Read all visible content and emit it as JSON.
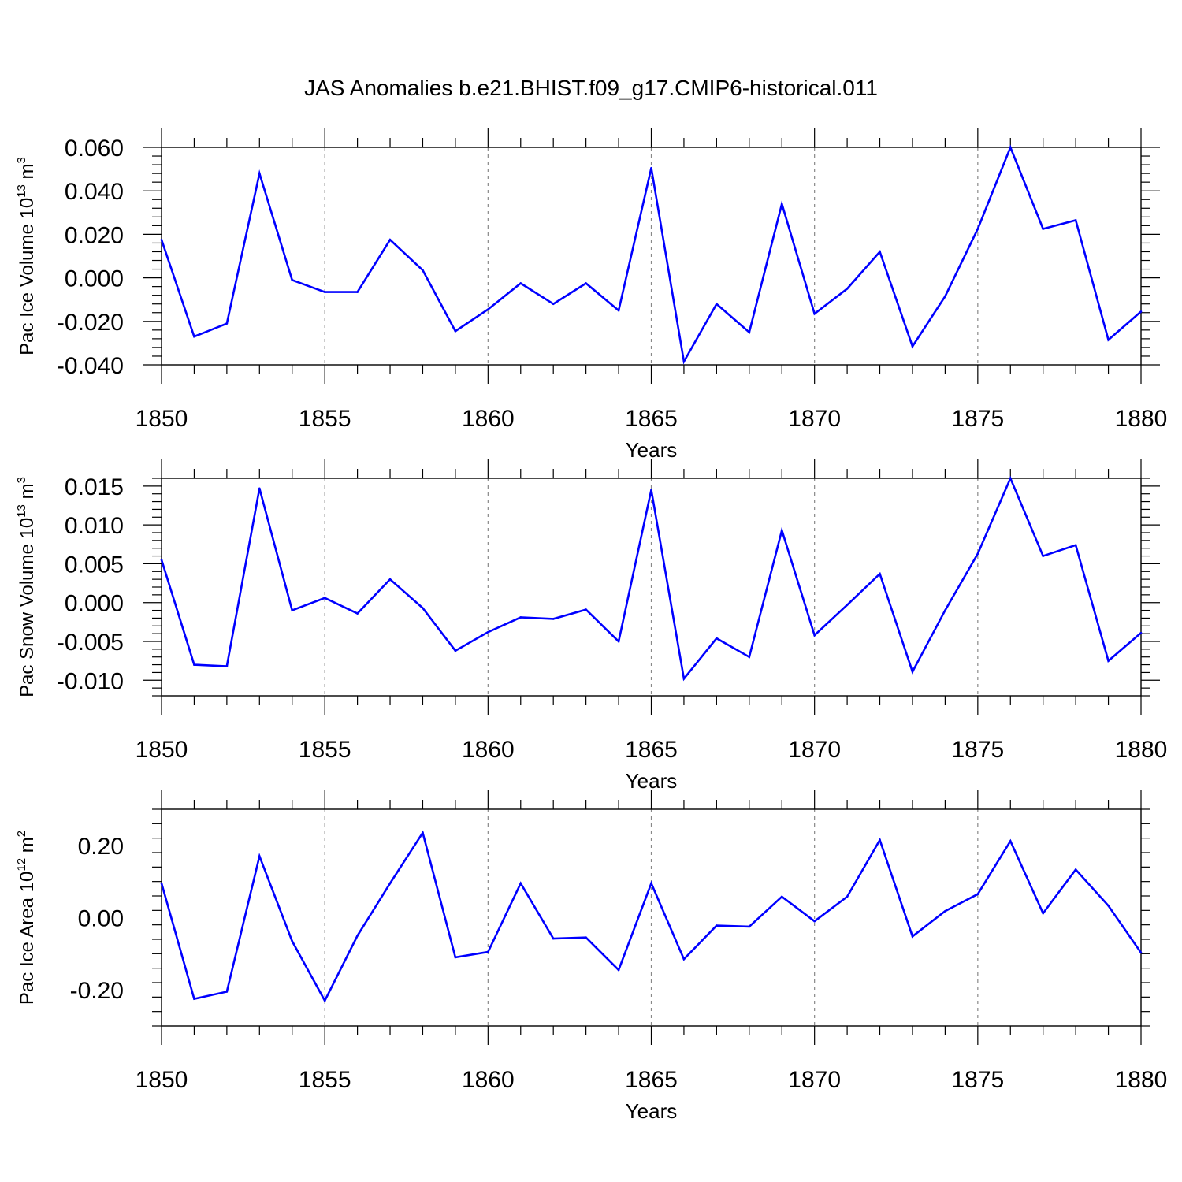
{
  "figure": {
    "title": "JAS Anomalies b.e21.BHIST.f09_g17.CMIP6-historical.011",
    "line_color": "#0000ff",
    "grid_color": "#888888"
  },
  "chart_data": [
    {
      "type": "line",
      "title": "",
      "xlabel": "Years",
      "ylabel": "Pac Ice Volume 10",
      "ylabel_exp": "13",
      "ylabel_unit": " m",
      "ylabel_unit_exp": "3",
      "xlim": [
        1850,
        1880
      ],
      "ylim": [
        -0.04,
        0.06
      ],
      "xticks": [
        1850,
        1855,
        1860,
        1865,
        1870,
        1875,
        1880
      ],
      "xticklabels": [
        "1850",
        "1855",
        "1860",
        "1865",
        "1870",
        "1875",
        "1880"
      ],
      "yticks": [
        -0.04,
        -0.02,
        0.0,
        0.02,
        0.04,
        0.06
      ],
      "yticklabels": [
        "-0.040",
        "-0.020",
        "0.000",
        "0.020",
        "0.040",
        "0.060"
      ],
      "x": [
        1850,
        1851,
        1852,
        1853,
        1854,
        1855,
        1856,
        1857,
        1858,
        1859,
        1860,
        1861,
        1862,
        1863,
        1864,
        1865,
        1866,
        1867,
        1868,
        1869,
        1870,
        1871,
        1872,
        1873,
        1874,
        1875,
        1876,
        1877,
        1878,
        1879,
        1880
      ],
      "values": [
        0.0175,
        -0.027,
        -0.021,
        0.048,
        -0.001,
        -0.0065,
        -0.0065,
        0.0175,
        0.0035,
        -0.0245,
        -0.0145,
        -0.0025,
        -0.012,
        -0.0025,
        -0.015,
        0.0505,
        -0.0385,
        -0.012,
        -0.025,
        0.034,
        -0.0165,
        -0.005,
        0.012,
        -0.0315,
        -0.0085,
        0.0225,
        0.06,
        0.0225,
        0.0265,
        -0.0285,
        -0.0155
      ]
    },
    {
      "type": "line",
      "title": "",
      "xlabel": "Years",
      "ylabel": "Pac Snow Volume 10",
      "ylabel_exp": "13",
      "ylabel_unit": " m",
      "ylabel_unit_exp": "3",
      "xlim": [
        1850,
        1880
      ],
      "ylim": [
        -0.012,
        0.016
      ],
      "xticks": [
        1850,
        1855,
        1860,
        1865,
        1870,
        1875,
        1880
      ],
      "xticklabels": [
        "1850",
        "1855",
        "1860",
        "1865",
        "1870",
        "1875",
        "1880"
      ],
      "yticks": [
        -0.01,
        -0.005,
        0.0,
        0.005,
        0.01,
        0.015
      ],
      "yticklabels": [
        "-0.010",
        "-0.005",
        "0.000",
        "0.005",
        "0.010",
        "0.015"
      ],
      "x": [
        1850,
        1851,
        1852,
        1853,
        1854,
        1855,
        1856,
        1857,
        1858,
        1859,
        1860,
        1861,
        1862,
        1863,
        1864,
        1865,
        1866,
        1867,
        1868,
        1869,
        1870,
        1871,
        1872,
        1873,
        1874,
        1875,
        1876,
        1877,
        1878,
        1879,
        1880
      ],
      "values": [
        0.0055,
        -0.008,
        -0.0082,
        0.0147,
        -0.001,
        0.0006,
        -0.0014,
        0.003,
        -0.0007,
        -0.0062,
        -0.0038,
        -0.0019,
        -0.0021,
        -0.0009,
        -0.005,
        0.0145,
        -0.0098,
        -0.0046,
        -0.007,
        0.0093,
        -0.0042,
        -0.0003,
        0.0037,
        -0.0089,
        -0.001,
        0.0063,
        0.016,
        0.006,
        0.0074,
        -0.0075,
        -0.0039
      ]
    },
    {
      "type": "line",
      "title": "",
      "xlabel": "Years",
      "ylabel": "Pac Ice Area 10",
      "ylabel_exp": "12",
      "ylabel_unit": " m",
      "ylabel_unit_exp": "2",
      "xlim": [
        1850,
        1880
      ],
      "ylim": [
        -0.3,
        0.3
      ],
      "xticks": [
        1850,
        1855,
        1860,
        1865,
        1870,
        1875,
        1880
      ],
      "xticklabels": [
        "1850",
        "1855",
        "1860",
        "1865",
        "1870",
        "1875",
        "1880"
      ],
      "yticks": [
        -0.2,
        0.0,
        0.2
      ],
      "yticklabels": [
        "-0.20",
        "0.00",
        "0.20"
      ],
      "x": [
        1850,
        1851,
        1852,
        1853,
        1854,
        1855,
        1856,
        1857,
        1858,
        1859,
        1860,
        1861,
        1862,
        1863,
        1864,
        1865,
        1866,
        1867,
        1868,
        1869,
        1870,
        1871,
        1872,
        1873,
        1874,
        1875,
        1876,
        1877,
        1878,
        1879,
        1880
      ],
      "values": [
        0.095,
        -0.225,
        -0.205,
        0.17,
        -0.065,
        -0.23,
        -0.05,
        0.095,
        0.235,
        -0.11,
        -0.095,
        0.095,
        -0.058,
        -0.055,
        -0.145,
        0.095,
        -0.115,
        -0.022,
        -0.025,
        0.058,
        -0.01,
        0.058,
        0.215,
        -0.052,
        0.018,
        0.065,
        0.212,
        0.012,
        0.133,
        0.033,
        -0.097
      ]
    }
  ]
}
